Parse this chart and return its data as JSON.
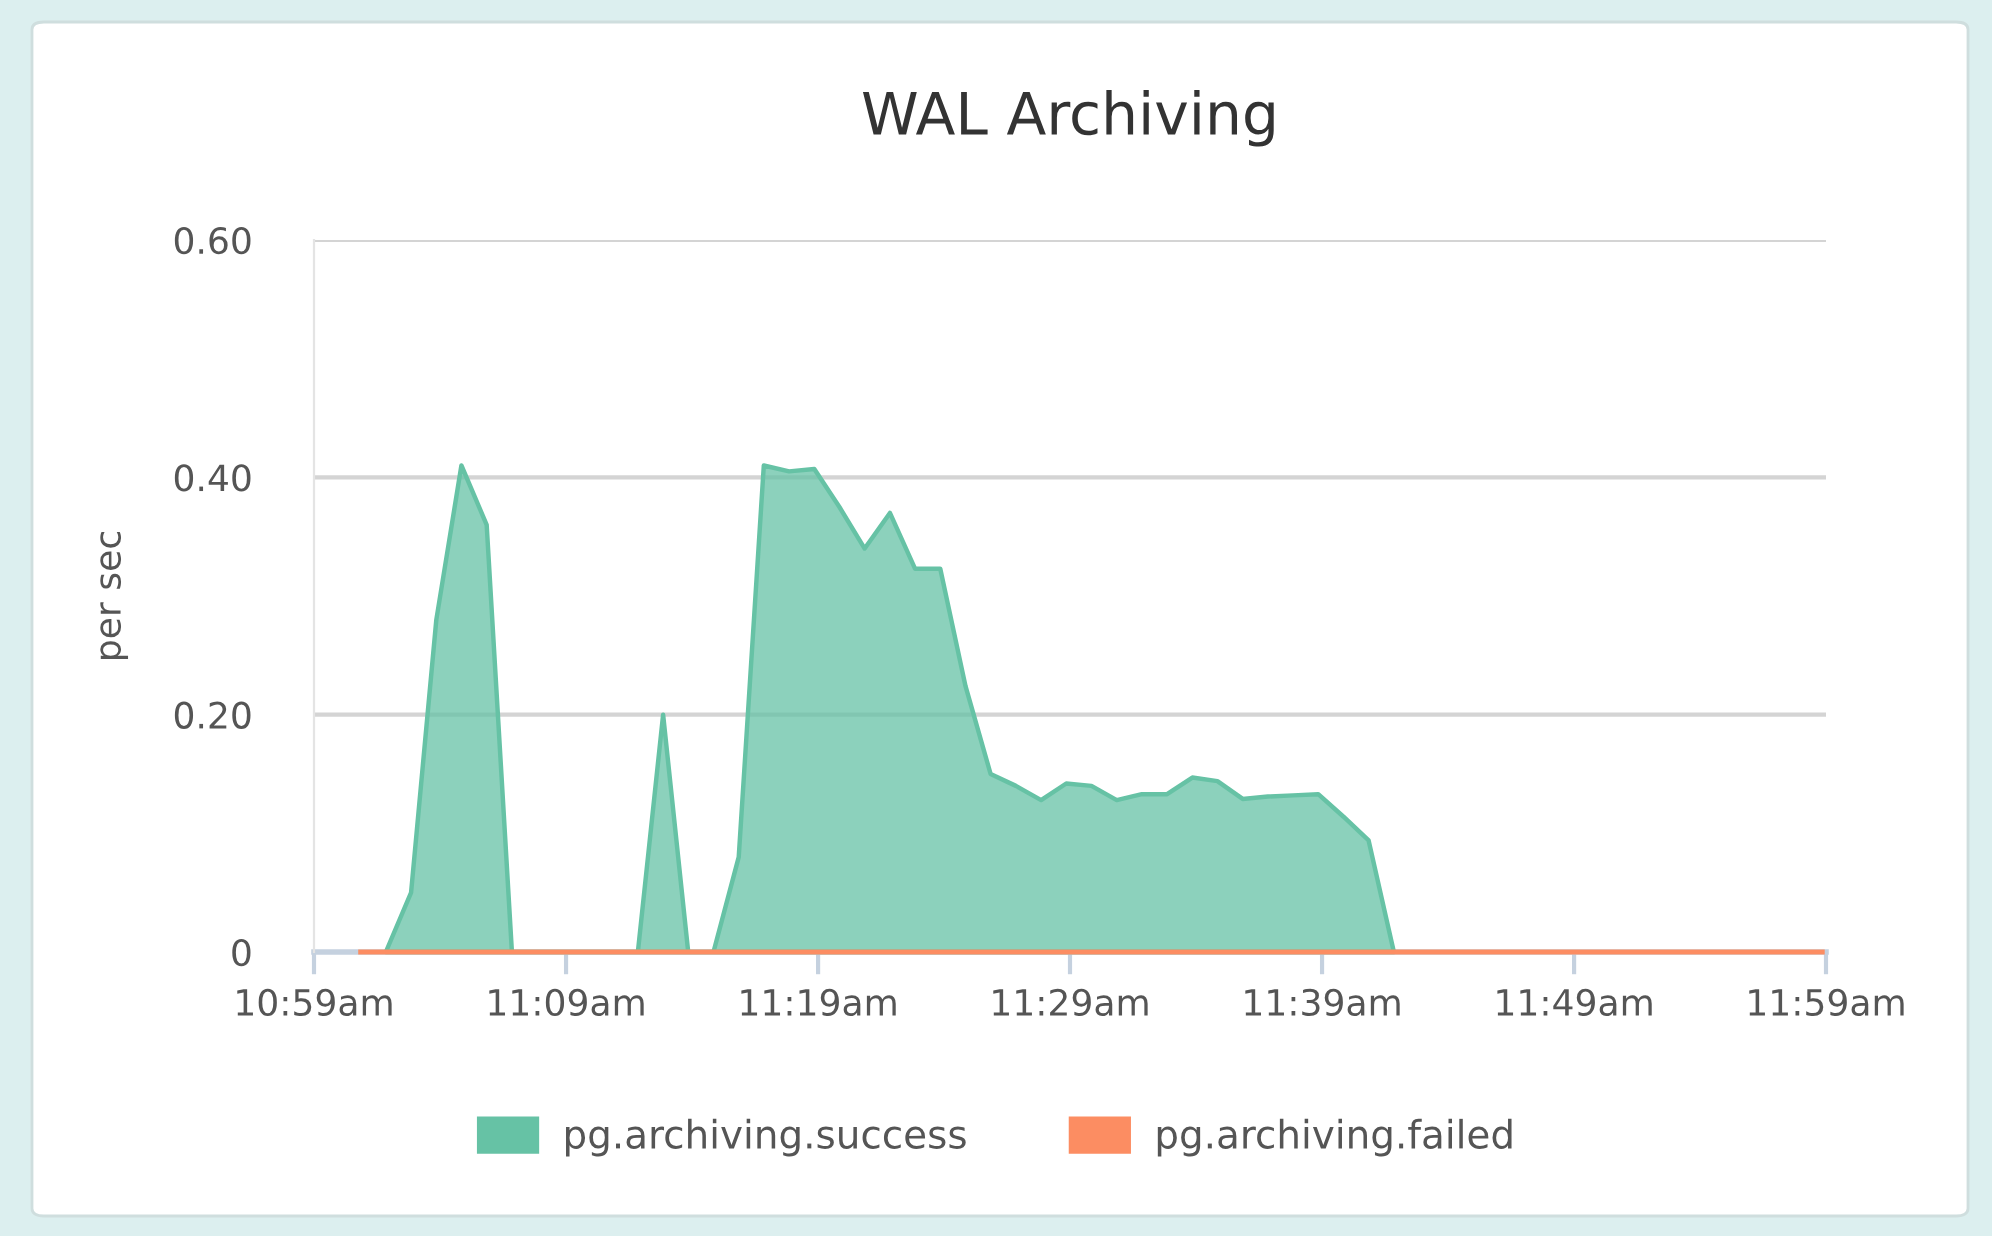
{
  "chart_data": {
    "type": "area",
    "title": "WAL Archiving",
    "ylabel": "per sec",
    "series": [
      {
        "name": "pg.archiving.success",
        "color": "#66c2a5",
        "x": [
          11.0308,
          11.0475,
          11.0642,
          11.0808,
          11.0975,
          11.1142,
          11.1975,
          11.2142,
          11.2308,
          11.2475,
          11.2642,
          11.2808,
          11.2975,
          11.3142,
          11.3308,
          11.3475,
          11.3642,
          11.3808,
          11.3975,
          11.4142,
          11.4308,
          11.4475,
          11.4642,
          11.4808,
          11.4975,
          11.5142,
          11.5308,
          11.5475,
          11.5642,
          11.5808,
          11.5975,
          11.6142,
          11.6308,
          11.6475,
          11.6642,
          11.6808,
          11.6975
        ],
        "values": [
          0,
          0.05,
          0.28,
          0.41,
          0.36,
          0,
          0,
          0.2,
          0,
          0,
          0.08,
          0.41,
          0.405,
          0.407,
          0.375,
          0.34,
          0.37,
          0.323,
          0.323,
          0.224,
          0.15,
          0.14,
          0.128,
          0.142,
          0.14,
          0.128,
          0.133,
          0.133,
          0.147,
          0.144,
          0.129,
          0.131,
          0.132,
          0.133,
          0.114,
          0.094,
          0
        ]
      },
      {
        "name": "pg.archiving.failed",
        "color": "#fc8d62",
        "type": "line",
        "x": [
          11.0142,
          11.9808
        ],
        "values": [
          0,
          0
        ]
      }
    ],
    "xlim": [
      10.9833,
      11.9833
    ],
    "xticks": [
      {
        "value": 10.9833,
        "label": "10:59am"
      },
      {
        "value": 11.15,
        "label": "11:09am"
      },
      {
        "value": 11.3167,
        "label": "11:19am"
      },
      {
        "value": 11.4833,
        "label": "11:29am"
      },
      {
        "value": 11.65,
        "label": "11:39am"
      },
      {
        "value": 11.8167,
        "label": "11:49am"
      },
      {
        "value": 11.9833,
        "label": "11:59am"
      }
    ],
    "ylim": [
      0,
      0.6
    ],
    "yticks": [
      0,
      {
        "value": 0.2,
        "label": "0.20"
      },
      {
        "value": 0.4,
        "label": "0.40"
      },
      {
        "value": 0.6,
        "label": "0.60"
      }
    ],
    "grid": "y",
    "legend": "bottom"
  }
}
